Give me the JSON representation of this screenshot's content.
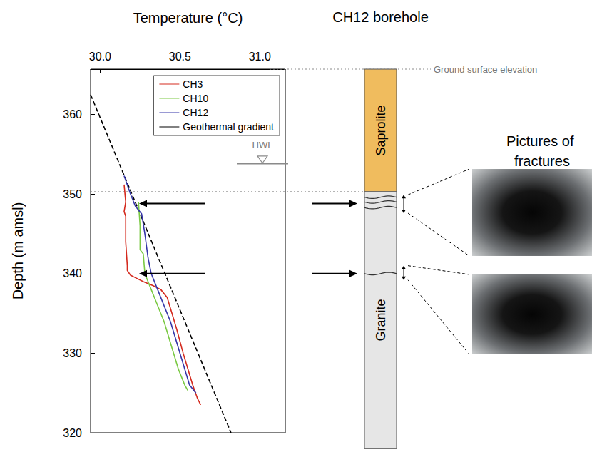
{
  "chart_data": {
    "type": "line",
    "x_label": "Temperature (°C)",
    "y_label": "Depth (m amsl)",
    "xlim": [
      29.94,
      31.16
    ],
    "xticks": [
      {
        "value": 30,
        "label": "30.0"
      },
      30.5,
      {
        "value": 31,
        "label": "31.0"
      }
    ],
    "ylim": [
      320,
      365.7
    ],
    "yticks": [
      320,
      330,
      340,
      350,
      360
    ],
    "grid": false,
    "legend": "upper right",
    "series": [
      {
        "name": "CH3",
        "color": "#d42a1e",
        "line_style": "solid",
        "x": [
          30.15,
          30.16,
          30.15,
          30.16,
          30.16,
          30.17,
          30.17,
          30.19,
          30.22,
          30.27,
          30.33,
          30.38,
          30.42,
          30.45,
          30.48,
          30.52,
          30.55,
          30.58,
          30.61,
          30.63
        ],
        "values": [
          351.2,
          349.0,
          347.8,
          347.2,
          344.0,
          341.0,
          340.4,
          339.8,
          339.5,
          339.0,
          338.5,
          338.0,
          337.0,
          335.0,
          333.0,
          330.0,
          328.0,
          326.0,
          324.3,
          323.5
        ]
      },
      {
        "name": "CH10",
        "color": "#7ac943",
        "line_style": "solid",
        "x": [
          30.24,
          30.25,
          30.25,
          30.27,
          30.28,
          30.3,
          30.32,
          30.36,
          30.4,
          30.43,
          30.46,
          30.49,
          30.53,
          30.55
        ],
        "values": [
          349.0,
          346.0,
          343.0,
          342.5,
          340.0,
          339.0,
          338.0,
          336.0,
          334.0,
          332.0,
          330.0,
          328.0,
          326.0,
          325.3
        ]
      },
      {
        "name": "CH12",
        "color": "#3535a8",
        "line_style": "solid",
        "x": [
          30.15,
          30.19,
          30.22,
          30.26,
          30.28,
          30.3,
          30.32,
          30.36,
          30.4,
          30.44,
          30.47,
          30.5,
          30.53,
          30.56,
          30.6
        ],
        "values": [
          352.3,
          350.0,
          348.5,
          347.5,
          345.0,
          342.0,
          340.0,
          338.0,
          336.0,
          334.0,
          332.0,
          330.0,
          328.0,
          326.0,
          325.0
        ]
      },
      {
        "name": "Geothermal gradient",
        "color": "#000000",
        "line_style": "dashed",
        "x": [
          29.94,
          30.82
        ],
        "values": [
          362.5,
          320
        ]
      }
    ],
    "annotations": {
      "hwl": {
        "label": "HWL",
        "depth": 353.8
      },
      "ground_surface": {
        "label": "Ground surface elevation",
        "depth": 365.7
      },
      "saprolite_base": 350.3,
      "fracture_arrows": [
        348.8,
        340.0
      ]
    }
  },
  "borehole": {
    "title": "CH12 borehole",
    "layers": [
      {
        "label": "Saprolite",
        "top": 365.7,
        "bottom": 350.3,
        "color": "#f0bc5e"
      },
      {
        "label": "Granite",
        "top": 350.3,
        "bottom": 318.0,
        "color": "#e6e6e6"
      }
    ],
    "fractures": [
      349.6,
      349.0,
      348.3,
      340.0
    ],
    "fracture_zones": [
      [
        349.9,
        347.6
      ],
      [
        341.0,
        339.2
      ]
    ]
  },
  "photos": {
    "title": "Pictures of fractures"
  }
}
